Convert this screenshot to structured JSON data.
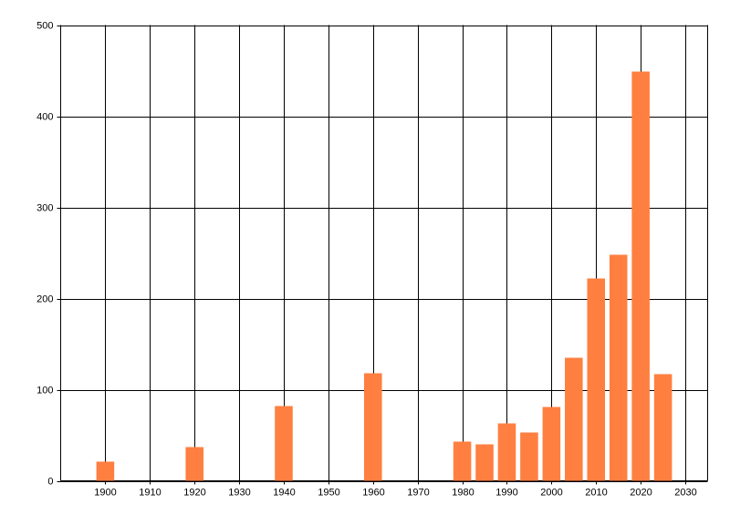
{
  "chart_data": {
    "type": "bar",
    "x": [
      1900,
      1920,
      1940,
      1960,
      1980,
      1985,
      1990,
      1995,
      2000,
      2005,
      2010,
      2015,
      2020,
      2025
    ],
    "values": [
      21,
      37,
      82,
      118,
      43,
      40,
      63,
      53,
      81,
      135,
      222,
      248,
      449,
      117
    ],
    "color": "#ff7f40",
    "xlim": [
      1890,
      2035
    ],
    "xticks": [
      1900,
      1910,
      1920,
      1930,
      1940,
      1950,
      1960,
      1970,
      1980,
      1990,
      2000,
      2010,
      2020,
      2030
    ],
    "ylim": [
      0,
      500
    ],
    "yticks": [
      0,
      100,
      200,
      300,
      400,
      500
    ],
    "grid": true
  }
}
